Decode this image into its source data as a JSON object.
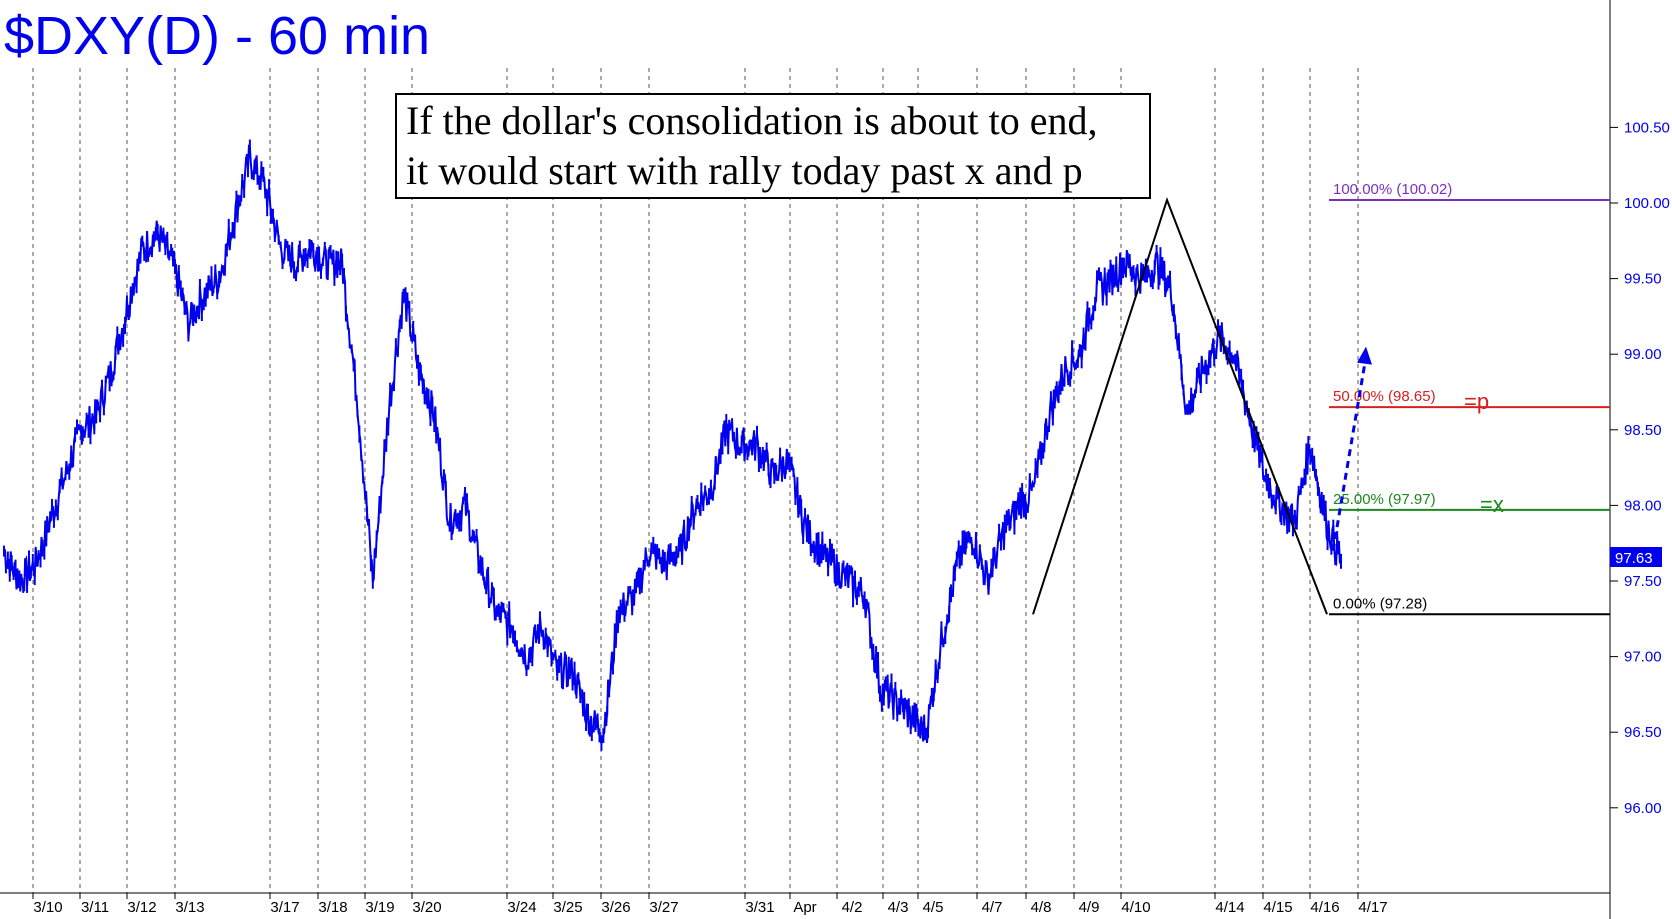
{
  "chart_data": {
    "type": "line",
    "title": "$DXY(D) - 60 min",
    "annotation_lines": [
      "If the dollar's consolidation is about to end,",
      "it would start with rally today past x and p"
    ],
    "y_ticks": [
      "100.50",
      "100.00",
      "99.50",
      "99.00",
      "98.50",
      "98.00",
      "97.50",
      "97.00",
      "96.50",
      "96.00"
    ],
    "ylim": [
      95.5,
      101.3
    ],
    "x_labels": [
      "3/10",
      "3/11",
      "3/12",
      "3/13",
      "3/17",
      "3/18",
      "3/19",
      "3/20",
      "3/24",
      "3/25",
      "3/26",
      "3/27",
      "3/31",
      "Apr",
      "4/2",
      "4/3",
      "4/5",
      "4/7",
      "4/8",
      "4/9",
      "4/10",
      "4/14",
      "4/15",
      "4/16",
      "4/17"
    ],
    "last_price": "97.63",
    "series": [
      {
        "color": "#0000ee",
        "values": [
          97.7,
          97.5,
          97.6,
          97.9,
          98.2,
          98.5,
          98.6,
          98.9,
          99.3,
          99.7,
          99.8,
          99.6,
          99.2,
          99.4,
          99.5,
          99.9,
          100.3,
          100.1,
          99.7,
          99.6,
          99.7,
          99.6,
          99.6,
          98.7,
          97.5,
          98.6,
          99.4,
          98.9,
          98.6,
          97.9,
          98.0,
          97.6,
          97.3,
          97.2,
          97.0,
          97.2,
          96.9,
          96.9,
          96.6,
          96.5,
          97.3,
          97.4,
          97.7,
          97.6,
          97.7,
          98.0,
          98.1,
          98.5,
          98.4,
          98.4,
          98.2,
          98.3,
          97.9,
          97.7,
          97.6,
          97.5,
          97.4,
          96.8,
          96.7,
          96.6,
          96.5,
          97.1,
          97.6,
          97.8,
          97.5,
          97.8,
          98.0,
          98.1,
          98.6,
          98.9,
          99.0,
          99.4,
          99.5,
          99.6,
          99.5,
          99.6,
          99.4,
          98.6,
          98.9,
          99.1,
          99.0,
          98.6,
          98.2,
          98.0,
          97.9,
          98.4,
          97.9,
          97.63
        ]
      }
    ],
    "fib_levels": [
      {
        "label": "100.00% (100.02)",
        "value": 100.02,
        "color": "#7b2fbf",
        "suffix": ""
      },
      {
        "label": "50.00% (98.65)",
        "value": 98.65,
        "color": "#d62020",
        "suffix": "=p"
      },
      {
        "label": "25.00% (97.97)",
        "value": 97.97,
        "color": "#1a8a1a",
        "suffix": "=x"
      },
      {
        "label": "0.00% (97.28)",
        "value": 97.28,
        "color": "#000000",
        "suffix": ""
      }
    ],
    "pattern_points": [
      {
        "x_label": "4/8",
        "value": 97.28
      },
      {
        "x_label": "4/10",
        "value": 100.02
      },
      {
        "x_label": "4/16",
        "value": 97.28
      }
    ],
    "projection": {
      "from": 97.7,
      "to": 99.05,
      "color": "#0000ee"
    },
    "grid": "vertical-dashed",
    "axis_position": "right"
  }
}
